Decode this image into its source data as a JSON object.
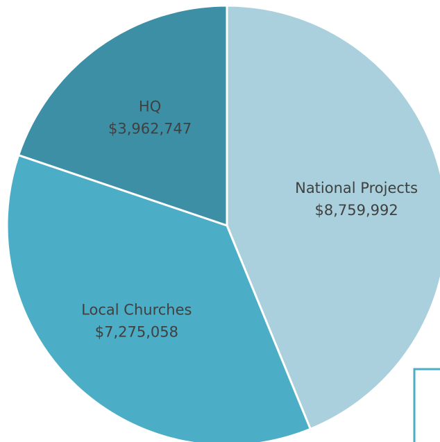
{
  "chart_data": {
    "type": "pie",
    "categories": [
      "National Projects",
      "Local Churches",
      "HQ"
    ],
    "values": [
      8759992,
      7275058,
      3962747
    ],
    "value_labels": [
      "$8,759,992",
      "$7,275,058",
      "$3,962,747"
    ],
    "colors": [
      "#a9d0dc",
      "#4badc6",
      "#3d8fa5"
    ]
  }
}
